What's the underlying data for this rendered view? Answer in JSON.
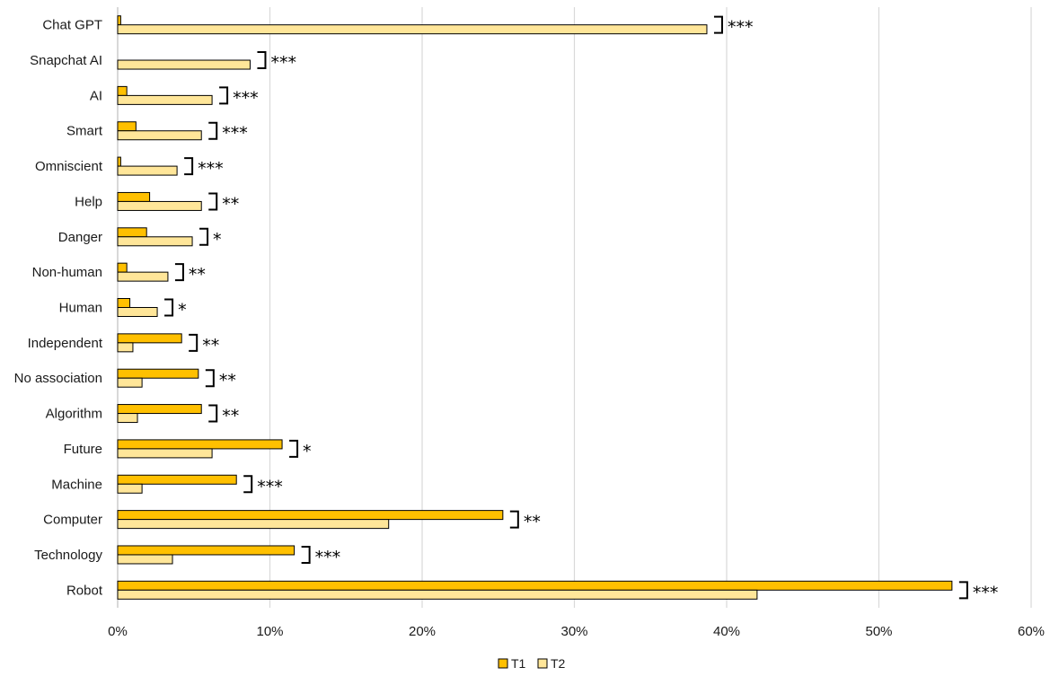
{
  "chart_data": {
    "type": "bar",
    "orientation": "horizontal",
    "categories": [
      "Chat GPT",
      "Snapchat AI",
      "AI",
      "Smart",
      "Omniscient",
      "Help",
      "Danger",
      "Non-human",
      "Human",
      "Independent",
      "No association",
      "Algorithm",
      "Future",
      "Machine",
      "Computer",
      "Technology",
      "Robot"
    ],
    "series": [
      {
        "name": "T1",
        "color": "#FFC000",
        "values": [
          0.2,
          0,
          0.6,
          1.2,
          0.2,
          2.1,
          1.9,
          0.6,
          0.8,
          4.2,
          5.3,
          5.5,
          10.8,
          7.8,
          25.3,
          11.6,
          54.8
        ]
      },
      {
        "name": "T2",
        "color": "#FFE699",
        "values": [
          38.7,
          8.7,
          6.2,
          5.5,
          3.9,
          5.5,
          4.9,
          3.3,
          2.6,
          1.0,
          1.6,
          1.3,
          6.2,
          1.6,
          17.8,
          3.6,
          42.0
        ]
      }
    ],
    "significance": [
      "***",
      "***",
      "***",
      "***",
      "***",
      "**",
      "*",
      "**",
      "*",
      "**",
      "**",
      "**",
      "*",
      "***",
      "**",
      "***",
      "***"
    ],
    "xlim": [
      0,
      60
    ],
    "xticks": [
      "0%",
      "10%",
      "20%",
      "30%",
      "40%",
      "50%",
      "60%"
    ],
    "xlabel": "",
    "ylabel": "",
    "title": "",
    "grid": "vertical",
    "legend": "bottom-center"
  }
}
